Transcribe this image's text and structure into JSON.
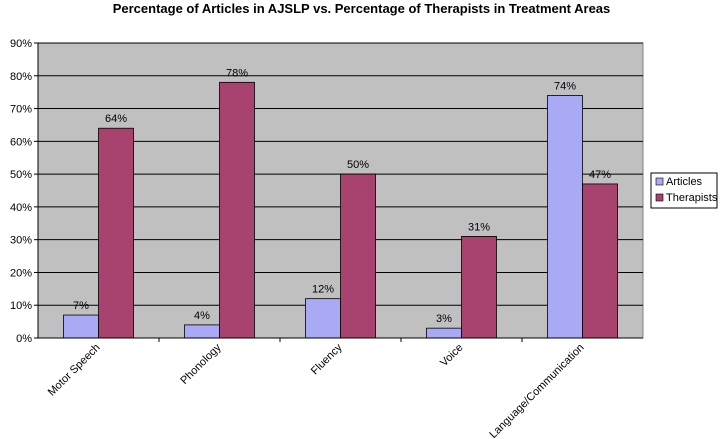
{
  "chart_data": {
    "type": "bar",
    "title": "Percentage of Articles in AJSLP vs. Percentage of Therapists in Treatment Areas",
    "xlabel": "",
    "ylabel": "",
    "categories": [
      "Motor Speech",
      "Phonology",
      "Fluency",
      "Voice",
      "Language/Communication"
    ],
    "series": [
      {
        "name": "Articles",
        "values": [
          7,
          4,
          12,
          3,
          74
        ],
        "labels": [
          "7%",
          "4%",
          "12%",
          "3%",
          "74%"
        ],
        "color": "#a9a9f5"
      },
      {
        "name": "Therapists",
        "values": [
          64,
          78,
          50,
          31,
          47
        ],
        "labels": [
          "64%",
          "78%",
          "50%",
          "31%",
          "47%"
        ],
        "color": "#a8426f"
      }
    ],
    "ylim": [
      0,
      90
    ],
    "yticks": [
      0,
      10,
      20,
      30,
      40,
      50,
      60,
      70,
      80,
      90
    ],
    "ytick_labels": [
      "0%",
      "10%",
      "20%",
      "30%",
      "40%",
      "50%",
      "60%",
      "70%",
      "80%",
      "90%"
    ],
    "grid": true,
    "legend_position": "right",
    "plot_background": "#c0c0c0"
  }
}
